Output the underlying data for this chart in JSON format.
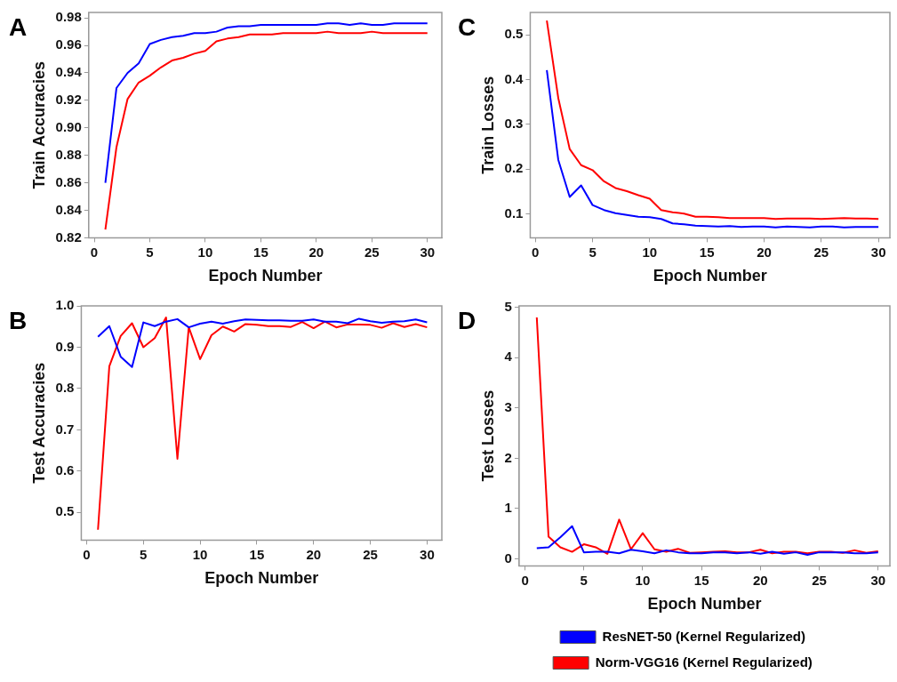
{
  "chart_data": [
    {
      "type": "line",
      "annotations": [
        "A"
      ],
      "xlabel": "Epoch Number",
      "ylabel": "Train Accuracies",
      "x": [
        1,
        2,
        3,
        4,
        5,
        6,
        7,
        8,
        9,
        10,
        11,
        12,
        13,
        14,
        15,
        16,
        17,
        18,
        19,
        20,
        21,
        22,
        23,
        24,
        25,
        26,
        27,
        28,
        29,
        30
      ],
      "xlim": [
        -0.5,
        31.3
      ],
      "xticks": [
        0,
        5,
        10,
        15,
        20,
        25,
        30
      ],
      "ylim": [
        0.82,
        0.984
      ],
      "yticks": [
        {
          "value": 0.82,
          "label": "0.82"
        },
        {
          "value": 0.84,
          "label": "0.84"
        },
        {
          "value": 0.86,
          "label": "0.86"
        },
        {
          "value": 0.88,
          "label": "0.88"
        },
        {
          "value": 0.9,
          "label": "0.90"
        },
        {
          "value": 0.92,
          "label": "0.92"
        },
        {
          "value": 0.94,
          "label": "0.94"
        },
        {
          "value": 0.96,
          "label": "0.96"
        },
        {
          "value": 0.98,
          "label": "0.98"
        }
      ],
      "grid": false,
      "legend": false,
      "series": [
        {
          "color": "#0000ff",
          "values": [
            0.86,
            0.929,
            0.94,
            0.947,
            0.961,
            0.964,
            0.966,
            0.967,
            0.969,
            0.969,
            0.97,
            0.973,
            0.974,
            0.974,
            0.975,
            0.975,
            0.975,
            0.975,
            0.975,
            0.975,
            0.976,
            0.976,
            0.975,
            0.976,
            0.975,
            0.975,
            0.976,
            0.976,
            0.976,
            0.976
          ]
        },
        {
          "color": "#ff0000",
          "values": [
            0.826,
            0.886,
            0.921,
            0.933,
            0.938,
            0.944,
            0.949,
            0.951,
            0.954,
            0.956,
            0.963,
            0.965,
            0.966,
            0.968,
            0.968,
            0.968,
            0.969,
            0.969,
            0.969,
            0.969,
            0.97,
            0.969,
            0.969,
            0.969,
            0.97,
            0.969,
            0.969,
            0.969,
            0.969,
            0.969
          ]
        }
      ]
    },
    {
      "type": "line",
      "annotations": [
        "C"
      ],
      "xlabel": "Epoch Number",
      "ylabel": "Train Losses",
      "x": [
        1,
        2,
        3,
        4,
        5,
        6,
        7,
        8,
        9,
        10,
        11,
        12,
        13,
        14,
        15,
        16,
        17,
        18,
        19,
        20,
        21,
        22,
        23,
        24,
        25,
        26,
        27,
        28,
        29,
        30
      ],
      "xlim": [
        -0.45,
        31
      ],
      "xticks": [
        0,
        5,
        10,
        15,
        20,
        25,
        30
      ],
      "ylim": [
        0.047,
        0.55
      ],
      "yticks": [
        0.1,
        0.2,
        0.3,
        0.4,
        0.5
      ],
      "grid": false,
      "legend": false,
      "series": [
        {
          "color": "#0000ff",
          "values": [
            0.421,
            0.221,
            0.138,
            0.164,
            0.12,
            0.109,
            0.102,
            0.098,
            0.094,
            0.093,
            0.089,
            0.079,
            0.077,
            0.074,
            0.073,
            0.072,
            0.073,
            0.071,
            0.072,
            0.072,
            0.07,
            0.072,
            0.071,
            0.07,
            0.072,
            0.072,
            0.07,
            0.071,
            0.071,
            0.071
          ]
        },
        {
          "color": "#ff0000",
          "values": [
            0.532,
            0.359,
            0.245,
            0.209,
            0.198,
            0.173,
            0.158,
            0.151,
            0.142,
            0.134,
            0.109,
            0.104,
            0.101,
            0.094,
            0.094,
            0.093,
            0.091,
            0.091,
            0.091,
            0.091,
            0.089,
            0.09,
            0.09,
            0.09,
            0.089,
            0.09,
            0.091,
            0.09,
            0.09,
            0.089
          ]
        }
      ]
    },
    {
      "type": "line",
      "annotations": [
        "B"
      ],
      "xlabel": "Epoch Number",
      "ylabel": "Test Accuracies",
      "x": [
        1,
        2,
        3,
        4,
        5,
        6,
        7,
        8,
        9,
        10,
        11,
        12,
        13,
        14,
        15,
        16,
        17,
        18,
        19,
        20,
        21,
        22,
        23,
        24,
        25,
        26,
        27,
        28,
        29,
        30
      ],
      "xlim": [
        -0.47,
        31.3
      ],
      "xticks": [
        0,
        5,
        10,
        15,
        20,
        25,
        30
      ],
      "ylim": [
        0.433,
        1.0
      ],
      "yticks": [
        0.5,
        0.6,
        0.7,
        0.8,
        0.9,
        {
          "value": 1.0,
          "label": "1.0"
        }
      ],
      "grid": false,
      "legend": false,
      "series": [
        {
          "color": "#0000ff",
          "values": [
            0.925,
            0.951,
            0.877,
            0.852,
            0.96,
            0.951,
            0.962,
            0.968,
            0.948,
            0.957,
            0.962,
            0.957,
            0.963,
            0.967,
            0.966,
            0.965,
            0.965,
            0.964,
            0.964,
            0.967,
            0.962,
            0.962,
            0.958,
            0.969,
            0.963,
            0.959,
            0.962,
            0.963,
            0.967,
            0.96
          ]
        },
        {
          "color": "#ff0000",
          "values": [
            0.458,
            0.854,
            0.927,
            0.958,
            0.9,
            0.922,
            0.972,
            0.63,
            0.948,
            0.871,
            0.929,
            0.95,
            0.938,
            0.956,
            0.954,
            0.951,
            0.951,
            0.949,
            0.961,
            0.946,
            0.962,
            0.948,
            0.955,
            0.955,
            0.954,
            0.947,
            0.958,
            0.949,
            0.956,
            0.948
          ]
        }
      ]
    },
    {
      "type": "line",
      "annotations": [
        "D"
      ],
      "xlabel": "Epoch Number",
      "ylabel": "Test Losses",
      "x": [
        1,
        2,
        3,
        4,
        5,
        6,
        7,
        8,
        9,
        10,
        11,
        12,
        13,
        14,
        15,
        16,
        17,
        18,
        19,
        20,
        21,
        22,
        23,
        24,
        25,
        26,
        27,
        28,
        29,
        30
      ],
      "xlim": [
        -0.5,
        31
      ],
      "xticks": [
        0,
        5,
        10,
        15,
        20,
        25,
        30
      ],
      "ylim": [
        -0.14,
        5.03
      ],
      "yticks": [
        0,
        1,
        2,
        3,
        4,
        5
      ],
      "grid": false,
      "legend": "bottom",
      "series": [
        {
          "name": "ResNET-50 (Kernel Regularized)",
          "color": "#0000ff",
          "values": [
            0.21,
            0.23,
            0.43,
            0.65,
            0.13,
            0.14,
            0.14,
            0.11,
            0.18,
            0.15,
            0.11,
            0.17,
            0.13,
            0.11,
            0.11,
            0.13,
            0.13,
            0.11,
            0.13,
            0.1,
            0.14,
            0.1,
            0.13,
            0.08,
            0.13,
            0.13,
            0.13,
            0.11,
            0.11,
            0.13
          ]
        },
        {
          "name": "Norm-VGG16 (Kernel Regularized)",
          "color": "#ff0000",
          "values": [
            4.8,
            0.44,
            0.23,
            0.14,
            0.29,
            0.23,
            0.1,
            0.78,
            0.19,
            0.51,
            0.19,
            0.14,
            0.2,
            0.12,
            0.13,
            0.14,
            0.15,
            0.13,
            0.13,
            0.18,
            0.11,
            0.14,
            0.14,
            0.11,
            0.14,
            0.14,
            0.12,
            0.17,
            0.12,
            0.15
          ]
        }
      ]
    }
  ]
}
